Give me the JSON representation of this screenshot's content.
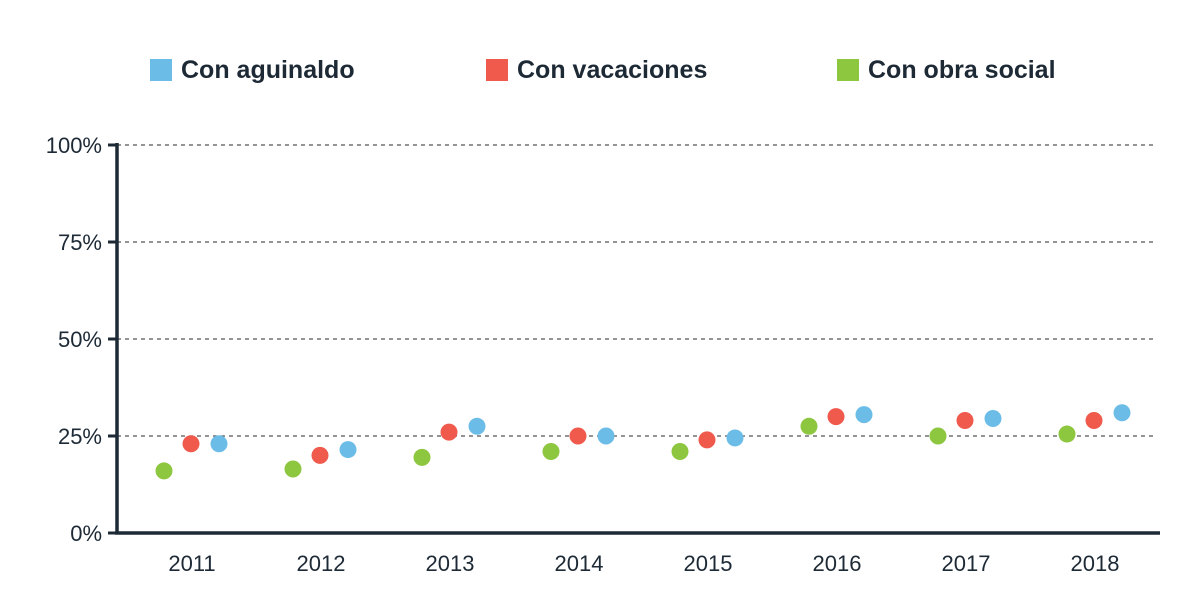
{
  "chart_data": {
    "type": "scatter",
    "categories": [
      "2011",
      "2012",
      "2013",
      "2014",
      "2015",
      "2016",
      "2017",
      "2018"
    ],
    "series": [
      {
        "name": "Con obra social",
        "color": "#8dc63f",
        "values": [
          16,
          16.5,
          19.5,
          21,
          21,
          27.5,
          25,
          25.5
        ]
      },
      {
        "name": "Con vacaciones",
        "color": "#ef5a4c",
        "values": [
          23,
          20,
          26,
          25,
          24,
          30,
          29,
          29
        ]
      },
      {
        "name": "Con aguinaldo",
        "color": "#6bbde8",
        "values": [
          23,
          21.5,
          27.5,
          25,
          24.5,
          30.5,
          29.5,
          31
        ]
      }
    ],
    "y_ticks": [
      "0%",
      "25%",
      "50%",
      "75%",
      "100%"
    ],
    "ylim": [
      0,
      100
    ],
    "grid": true,
    "legend_position": "top"
  },
  "legend": [
    {
      "label": "Con aguinaldo",
      "color": "#6bbde8"
    },
    {
      "label": "Con vacaciones",
      "color": "#ef5a4c"
    },
    {
      "label": "Con obra social",
      "color": "#8dc63f"
    }
  ]
}
